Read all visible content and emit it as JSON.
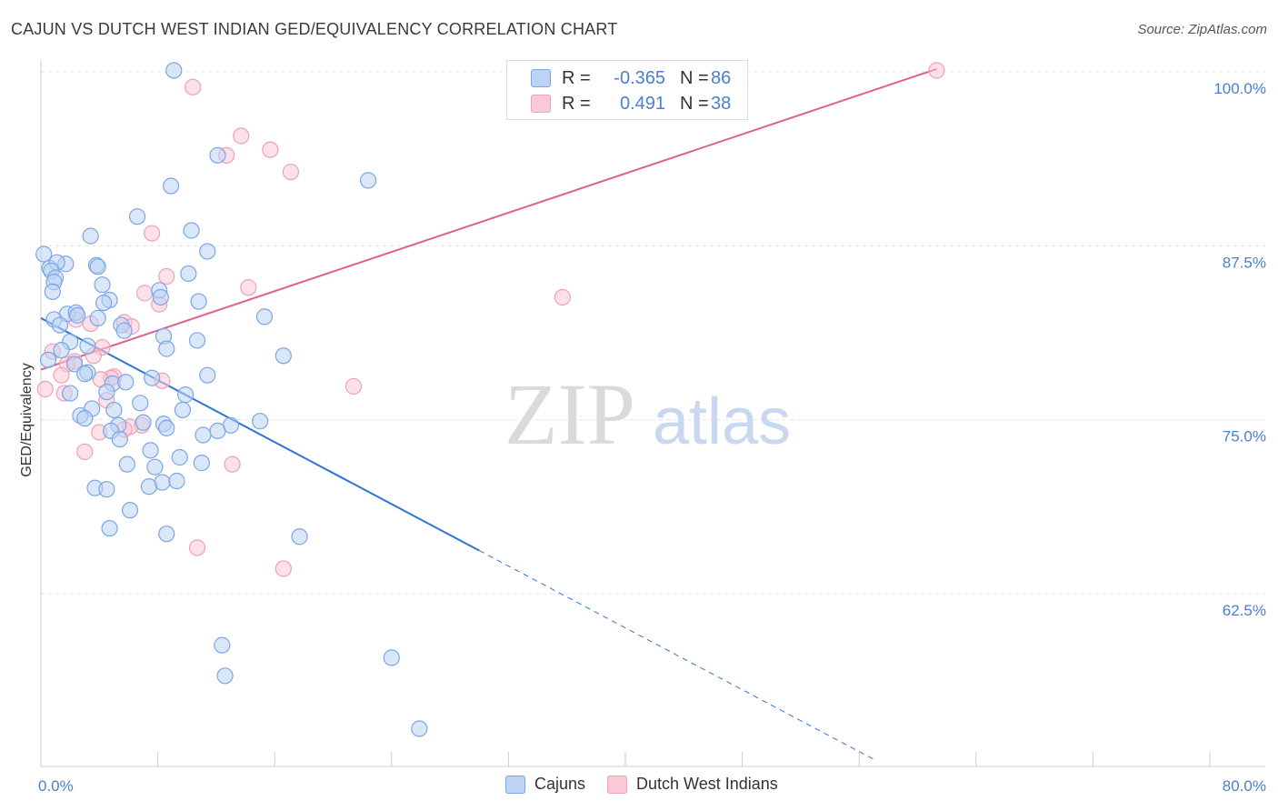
{
  "title": "CAJUN VS DUTCH WEST INDIAN GED/EQUIVALENCY CORRELATION CHART",
  "source": "Source: ZipAtlas.com",
  "watermark": {
    "zip": "ZIP",
    "atlas": "atlas"
  },
  "colors": {
    "blue": "#4a7fd0",
    "blue_fill": "#bcd3f4",
    "blue_stroke": "#7ba6e6",
    "blue_line": "#2e74d8",
    "pink_fill": "#f9c9d6",
    "pink_stroke": "#f0a0b8",
    "pink_line": "#e0608a"
  },
  "legend_top": [
    {
      "label": "R =",
      "r": "-0.365",
      "n_label": "N =",
      "n": "86",
      "color": "blue"
    },
    {
      "label": "R =",
      "r": "0.491",
      "n_label": "N =",
      "n": "38",
      "color": "pink"
    }
  ],
  "legend_bottom": [
    {
      "name": "Cajuns",
      "color": "blue"
    },
    {
      "name": "Dutch West Indians",
      "color": "pink"
    }
  ],
  "chart_data": {
    "type": "scatter",
    "title": "CAJUN VS DUTCH WEST INDIAN GED/EQUIVALENCY CORRELATION CHART",
    "xlabel": "",
    "ylabel": "GED/Equivalency",
    "xlim": [
      0,
      80
    ],
    "ylim": [
      51.5,
      102
    ],
    "x_tick_labels": [
      {
        "value": 0,
        "label": "0.0%"
      },
      {
        "value": 80,
        "label": "80.0%"
      }
    ],
    "x_ticks": [
      0,
      8,
      16,
      24,
      32,
      40,
      48,
      56,
      64,
      72,
      80
    ],
    "y_ticks": [
      {
        "value": 62.5,
        "label": "62.5%"
      },
      {
        "value": 75.0,
        "label": "75.0%"
      },
      {
        "value": 87.5,
        "label": "87.5%"
      },
      {
        "value": 100.0,
        "label": "100.0%"
      }
    ],
    "series": [
      {
        "name": "Cajuns",
        "color": "blue",
        "R": -0.365,
        "N": 86,
        "trend": {
          "x0": 0,
          "y0": 82.3,
          "x1": 30,
          "y1": 65.6,
          "dash_x1": 57,
          "dash_y1": 50.6
        },
        "points": [
          [
            9.1,
            100.1
          ],
          [
            12.1,
            94.0
          ],
          [
            22.4,
            92.2
          ],
          [
            8.9,
            91.8
          ],
          [
            6.6,
            89.6
          ],
          [
            10.3,
            88.6
          ],
          [
            3.4,
            88.2
          ],
          [
            11.4,
            87.1
          ],
          [
            0.2,
            86.9
          ],
          [
            1.7,
            86.2
          ],
          [
            3.8,
            86.1
          ],
          [
            0.6,
            85.9
          ],
          [
            1.1,
            86.3
          ],
          [
            3.9,
            86.0
          ],
          [
            0.7,
            85.7
          ],
          [
            10.1,
            85.5
          ],
          [
            1.0,
            85.2
          ],
          [
            4.2,
            84.7
          ],
          [
            0.9,
            84.9
          ],
          [
            0.8,
            84.2
          ],
          [
            8.1,
            84.3
          ],
          [
            4.7,
            83.6
          ],
          [
            4.3,
            83.4
          ],
          [
            10.8,
            83.5
          ],
          [
            1.8,
            82.6
          ],
          [
            8.2,
            83.8
          ],
          [
            2.4,
            82.7
          ],
          [
            15.3,
            82.4
          ],
          [
            2.5,
            82.5
          ],
          [
            0.9,
            82.2
          ],
          [
            3.9,
            82.3
          ],
          [
            5.5,
            81.8
          ],
          [
            5.7,
            81.4
          ],
          [
            8.4,
            81.0
          ],
          [
            10.7,
            80.7
          ],
          [
            2.0,
            80.6
          ],
          [
            3.2,
            80.3
          ],
          [
            1.4,
            80.0
          ],
          [
            8.6,
            80.1
          ],
          [
            16.6,
            79.6
          ],
          [
            2.3,
            79.0
          ],
          [
            3.2,
            78.4
          ],
          [
            11.4,
            78.2
          ],
          [
            3.0,
            78.3
          ],
          [
            7.6,
            78.0
          ],
          [
            4.9,
            77.6
          ],
          [
            5.8,
            77.7
          ],
          [
            2.0,
            76.9
          ],
          [
            4.5,
            77.0
          ],
          [
            3.5,
            75.8
          ],
          [
            9.7,
            75.7
          ],
          [
            2.7,
            75.3
          ],
          [
            5.0,
            75.7
          ],
          [
            3.0,
            75.1
          ],
          [
            7.0,
            74.8
          ],
          [
            8.4,
            74.7
          ],
          [
            13.0,
            74.6
          ],
          [
            15.0,
            74.9
          ],
          [
            5.3,
            74.6
          ],
          [
            8.6,
            74.4
          ],
          [
            12.1,
            74.2
          ],
          [
            4.8,
            74.2
          ],
          [
            5.4,
            73.6
          ],
          [
            11.1,
            73.9
          ],
          [
            7.5,
            72.8
          ],
          [
            9.5,
            72.3
          ],
          [
            5.9,
            71.8
          ],
          [
            11.0,
            71.9
          ],
          [
            7.8,
            71.6
          ],
          [
            8.3,
            70.5
          ],
          [
            9.3,
            70.6
          ],
          [
            3.7,
            70.1
          ],
          [
            4.5,
            70.0
          ],
          [
            7.4,
            70.2
          ],
          [
            6.1,
            68.5
          ],
          [
            4.7,
            67.2
          ],
          [
            8.6,
            66.8
          ],
          [
            17.7,
            66.6
          ],
          [
            12.4,
            58.8
          ],
          [
            24.0,
            57.9
          ],
          [
            12.6,
            56.6
          ],
          [
            25.9,
            52.8
          ],
          [
            1.3,
            81.8
          ],
          [
            0.5,
            79.3
          ],
          [
            6.8,
            76.2
          ],
          [
            9.9,
            76.8
          ]
        ]
      },
      {
        "name": "Dutch West Indians",
        "color": "pink",
        "R": 0.491,
        "N": 38,
        "trend": {
          "x0": 0,
          "y0": 78.6,
          "x1": 61.3,
          "y1": 100.2
        },
        "points": [
          [
            61.3,
            100.1
          ],
          [
            10.4,
            98.9
          ],
          [
            13.7,
            95.4
          ],
          [
            15.7,
            94.4
          ],
          [
            12.7,
            94.0
          ],
          [
            17.1,
            92.8
          ],
          [
            7.6,
            88.4
          ],
          [
            8.6,
            85.3
          ],
          [
            14.2,
            84.5
          ],
          [
            7.1,
            84.1
          ],
          [
            8.1,
            83.3
          ],
          [
            35.7,
            83.8
          ],
          [
            2.4,
            82.2
          ],
          [
            5.7,
            82.0
          ],
          [
            3.4,
            81.9
          ],
          [
            6.2,
            81.7
          ],
          [
            4.2,
            80.2
          ],
          [
            0.8,
            79.9
          ],
          [
            3.6,
            79.6
          ],
          [
            1.8,
            79.0
          ],
          [
            2.3,
            79.2
          ],
          [
            1.4,
            78.2
          ],
          [
            5.0,
            78.1
          ],
          [
            4.8,
            78.0
          ],
          [
            4.1,
            77.9
          ],
          [
            8.3,
            77.8
          ],
          [
            21.4,
            77.4
          ],
          [
            0.3,
            77.2
          ],
          [
            6.9,
            74.6
          ],
          [
            4.0,
            74.1
          ],
          [
            6.1,
            74.5
          ],
          [
            5.7,
            74.3
          ],
          [
            3.0,
            72.7
          ],
          [
            13.1,
            71.8
          ],
          [
            10.7,
            65.8
          ],
          [
            16.6,
            64.3
          ],
          [
            4.5,
            76.4
          ],
          [
            1.6,
            76.9
          ]
        ]
      }
    ]
  }
}
